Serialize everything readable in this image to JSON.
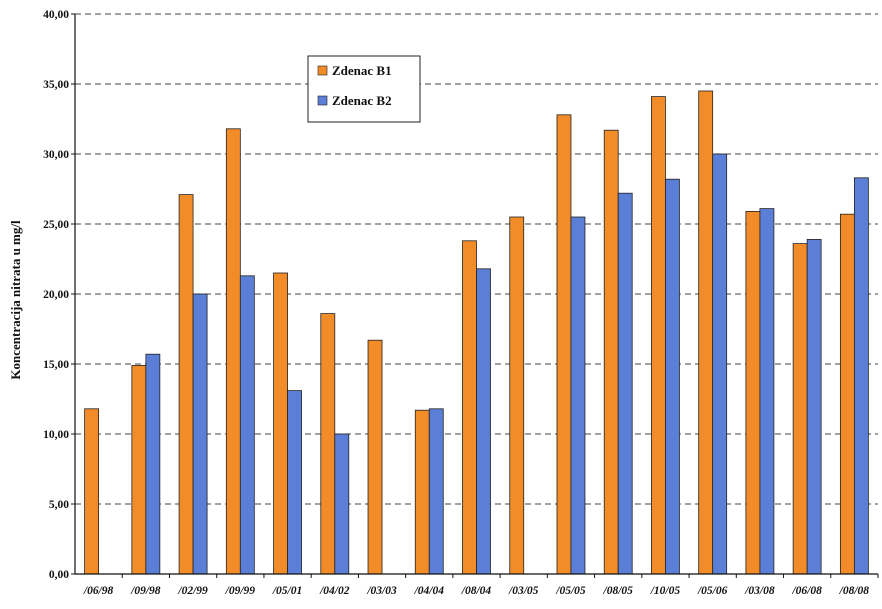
{
  "chart_data": {
    "type": "bar",
    "title": "",
    "xlabel": "",
    "ylabel": "Koncentracija nitrata u mg/l",
    "ylim": [
      0,
      40
    ],
    "yticks": [
      "0,00",
      "5,00",
      "10,00",
      "15,00",
      "20,00",
      "25,00",
      "30,00",
      "35,00",
      "40,00"
    ],
    "grid": true,
    "legend_position": "top-center",
    "categories": [
      "/06/98",
      "/09/98",
      "/02/99",
      "/09/99",
      "/05/01",
      "/04/02",
      "/03/03",
      "/04/04",
      "/08/04",
      "/03/05",
      "/05/05",
      "/08/05",
      "/10/05",
      "/05/06",
      "/03/08",
      "/06/08",
      "/08/08"
    ],
    "series": [
      {
        "name": "Zdenac B1",
        "color": "#F28C28",
        "values": [
          11.8,
          14.9,
          27.1,
          31.8,
          21.5,
          18.6,
          16.7,
          11.7,
          23.8,
          25.5,
          32.8,
          31.7,
          34.1,
          34.5,
          25.9,
          23.6,
          25.7
        ]
      },
      {
        "name": "Zdenac B2",
        "color": "#5B7FD6",
        "values": [
          null,
          15.7,
          20.0,
          21.3,
          13.1,
          10.0,
          null,
          11.8,
          21.8,
          null,
          25.5,
          27.2,
          28.2,
          30.0,
          26.1,
          23.9,
          28.3
        ]
      }
    ]
  }
}
